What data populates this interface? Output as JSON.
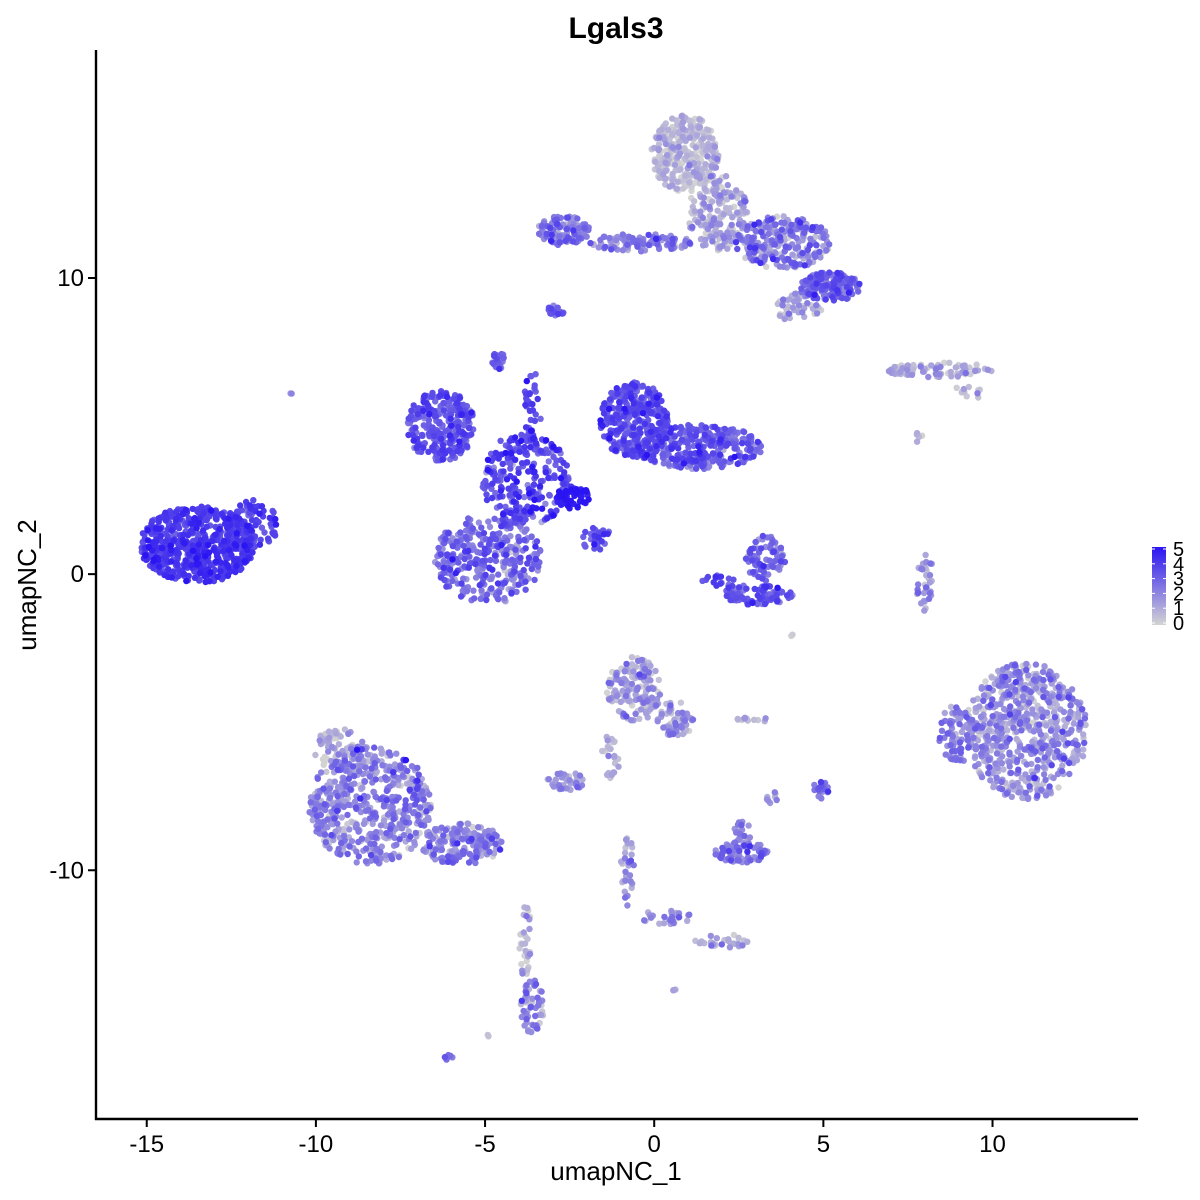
{
  "chart_data": {
    "type": "scatter",
    "title": "Lgals3",
    "xlabel": "umapNC_1",
    "ylabel": "umapNC_2",
    "xlim": [
      -16.5,
      14.3
    ],
    "ylim": [
      -18.4,
      17.7
    ],
    "x_ticks": [
      -15,
      -10,
      -5,
      0,
      5,
      10
    ],
    "x_tick_labels": [
      "-15",
      "-10",
      "-5",
      "0",
      "5",
      "10"
    ],
    "y_ticks": [
      -10,
      0,
      10
    ],
    "y_tick_labels": [
      "-10",
      "0",
      "10"
    ],
    "grid": false,
    "color_scale": {
      "low_color": "#d3d3d3",
      "high_color": "#2a14f2",
      "min": 0,
      "max": 5,
      "legend_position": "right",
      "legend_labels": [
        "0",
        "1",
        "2",
        "3",
        "4",
        "5"
      ]
    },
    "clusters": [
      {
        "cx": -13.5,
        "cy": 1.0,
        "rx": 1.7,
        "ry": 1.3,
        "n": 600,
        "level": 3.9,
        "spread": 0.5
      },
      {
        "cx": -11.8,
        "cy": 1.7,
        "rx": 0.7,
        "ry": 0.8,
        "n": 80,
        "level": 3.6,
        "spread": 0.5
      },
      {
        "cx": -10.7,
        "cy": 6.1,
        "rx": 0.08,
        "ry": 0.08,
        "n": 2,
        "level": 2.0,
        "spread": 0.3
      },
      {
        "cx": -6.3,
        "cy": 5.0,
        "rx": 1.0,
        "ry": 1.2,
        "n": 260,
        "level": 3.3,
        "spread": 0.7
      },
      {
        "cx": -4.9,
        "cy": 0.5,
        "rx": 1.6,
        "ry": 1.5,
        "n": 330,
        "level": 2.6,
        "spread": 0.9
      },
      {
        "cx": -3.8,
        "cy": 3.2,
        "rx": 1.3,
        "ry": 1.6,
        "n": 260,
        "level": 3.5,
        "spread": 0.8
      },
      {
        "cx": -2.4,
        "cy": 2.6,
        "rx": 0.5,
        "ry": 0.4,
        "n": 60,
        "level": 4.8,
        "spread": 0.3
      },
      {
        "cx": -0.6,
        "cy": 5.2,
        "rx": 1.0,
        "ry": 1.3,
        "n": 300,
        "level": 3.4,
        "spread": 0.6
      },
      {
        "cx": 1.3,
        "cy": 4.3,
        "rx": 1.9,
        "ry": 0.75,
        "n": 320,
        "level": 3.1,
        "spread": 0.7
      },
      {
        "cx": -4.6,
        "cy": 7.2,
        "rx": 0.2,
        "ry": 0.3,
        "n": 25,
        "level": 2.8,
        "spread": 0.6
      },
      {
        "cx": -3.6,
        "cy": 5.5,
        "rx": 0.25,
        "ry": 1.4,
        "n": 40,
        "level": 3.6,
        "spread": 0.5
      },
      {
        "cx": -1.7,
        "cy": 1.2,
        "rx": 0.5,
        "ry": 0.4,
        "n": 25,
        "level": 3.3,
        "spread": 0.6
      },
      {
        "cx": 0.9,
        "cy": 14.2,
        "rx": 1.0,
        "ry": 1.3,
        "n": 320,
        "level": 0.5,
        "spread": 0.6
      },
      {
        "cx": 1.9,
        "cy": 12.2,
        "rx": 0.9,
        "ry": 1.3,
        "n": 180,
        "level": 0.9,
        "spread": 0.8
      },
      {
        "cx": 3.8,
        "cy": 11.2,
        "rx": 1.4,
        "ry": 0.9,
        "n": 260,
        "level": 1.9,
        "spread": 1.0
      },
      {
        "cx": 5.2,
        "cy": 9.7,
        "rx": 0.9,
        "ry": 0.5,
        "n": 160,
        "level": 2.8,
        "spread": 0.7
      },
      {
        "cx": 4.3,
        "cy": 9.0,
        "rx": 0.7,
        "ry": 0.5,
        "n": 50,
        "level": 1.2,
        "spread": 0.8
      },
      {
        "cx": -2.7,
        "cy": 11.6,
        "rx": 0.8,
        "ry": 0.5,
        "n": 110,
        "level": 2.3,
        "spread": 0.7
      },
      {
        "cx": -0.4,
        "cy": 11.2,
        "rx": 1.5,
        "ry": 0.3,
        "n": 110,
        "level": 2.2,
        "spread": 0.8
      },
      {
        "cx": -2.9,
        "cy": 8.9,
        "rx": 0.25,
        "ry": 0.2,
        "n": 15,
        "level": 2.9,
        "spread": 0.5
      },
      {
        "cx": 8.4,
        "cy": 6.9,
        "rx": 1.6,
        "ry": 0.25,
        "n": 80,
        "level": 0.8,
        "spread": 0.7
      },
      {
        "cx": 9.2,
        "cy": 6.1,
        "rx": 0.5,
        "ry": 0.25,
        "n": 10,
        "level": 0.8,
        "spread": 0.6
      },
      {
        "cx": 7.8,
        "cy": 4.6,
        "rx": 0.15,
        "ry": 0.2,
        "n": 5,
        "level": 0.6,
        "spread": 0.5
      },
      {
        "cx": 3.3,
        "cy": 0.5,
        "rx": 0.6,
        "ry": 0.8,
        "n": 80,
        "level": 2.5,
        "spread": 0.8
      },
      {
        "cx": 3.1,
        "cy": -0.7,
        "rx": 1.0,
        "ry": 0.35,
        "n": 90,
        "level": 3.0,
        "spread": 0.6
      },
      {
        "cx": 1.9,
        "cy": -0.3,
        "rx": 0.5,
        "ry": 0.3,
        "n": 20,
        "level": 3.2,
        "spread": 0.5
      },
      {
        "cx": 8.0,
        "cy": -0.2,
        "rx": 0.25,
        "ry": 1.1,
        "n": 35,
        "level": 1.5,
        "spread": 0.8
      },
      {
        "cx": 11.0,
        "cy": -5.3,
        "rx": 1.8,
        "ry": 2.3,
        "n": 650,
        "level": 1.5,
        "spread": 0.9
      },
      {
        "cx": 9.0,
        "cy": -5.4,
        "rx": 0.6,
        "ry": 1.0,
        "n": 80,
        "level": 2.1,
        "spread": 0.8
      },
      {
        "cx": -0.6,
        "cy": -3.9,
        "rx": 0.8,
        "ry": 1.1,
        "n": 170,
        "level": 1.2,
        "spread": 0.9
      },
      {
        "cx": 0.6,
        "cy": -4.9,
        "rx": 0.6,
        "ry": 0.6,
        "n": 60,
        "level": 1.4,
        "spread": 0.8
      },
      {
        "cx": -1.3,
        "cy": -6.1,
        "rx": 0.3,
        "ry": 0.8,
        "n": 25,
        "level": 1.0,
        "spread": 0.7
      },
      {
        "cx": -2.6,
        "cy": -7.0,
        "rx": 0.6,
        "ry": 0.3,
        "n": 45,
        "level": 1.4,
        "spread": 0.8
      },
      {
        "cx": -8.4,
        "cy": -7.8,
        "rx": 1.8,
        "ry": 2.0,
        "n": 520,
        "level": 1.9,
        "spread": 0.9
      },
      {
        "cx": -5.7,
        "cy": -9.1,
        "rx": 1.2,
        "ry": 0.7,
        "n": 180,
        "level": 1.9,
        "spread": 0.9
      },
      {
        "cx": -9.3,
        "cy": -6.0,
        "rx": 0.8,
        "ry": 0.8,
        "n": 80,
        "level": 0.8,
        "spread": 0.7
      },
      {
        "cx": -3.8,
        "cy": -12.4,
        "rx": 0.2,
        "ry": 1.3,
        "n": 30,
        "level": 0.8,
        "spread": 0.7
      },
      {
        "cx": -3.6,
        "cy": -14.6,
        "rx": 0.35,
        "ry": 0.9,
        "n": 55,
        "level": 1.8,
        "spread": 0.9
      },
      {
        "cx": -6.1,
        "cy": -16.3,
        "rx": 0.15,
        "ry": 0.1,
        "n": 6,
        "level": 2.5,
        "spread": 0.4
      },
      {
        "cx": 2.6,
        "cy": -9.4,
        "rx": 0.8,
        "ry": 0.35,
        "n": 90,
        "level": 2.1,
        "spread": 0.8
      },
      {
        "cx": 2.6,
        "cy": -8.7,
        "rx": 0.3,
        "ry": 0.4,
        "n": 20,
        "level": 1.9,
        "spread": 0.7
      },
      {
        "cx": 3.5,
        "cy": -7.5,
        "rx": 0.2,
        "ry": 0.25,
        "n": 8,
        "level": 1.2,
        "spread": 0.6
      },
      {
        "cx": 4.9,
        "cy": -7.3,
        "rx": 0.3,
        "ry": 0.3,
        "n": 20,
        "level": 2.8,
        "spread": 0.6
      },
      {
        "cx": 2.9,
        "cy": -4.9,
        "rx": 0.5,
        "ry": 0.1,
        "n": 12,
        "level": 0.9,
        "spread": 0.6
      },
      {
        "cx": -0.8,
        "cy": -10.0,
        "rx": 0.2,
        "ry": 1.2,
        "n": 30,
        "level": 1.3,
        "spread": 0.8
      },
      {
        "cx": 0.3,
        "cy": -11.6,
        "rx": 0.8,
        "ry": 0.25,
        "n": 30,
        "level": 1.6,
        "spread": 0.8
      },
      {
        "cx": 2.1,
        "cy": -12.4,
        "rx": 0.9,
        "ry": 0.25,
        "n": 30,
        "level": 1.4,
        "spread": 0.8
      },
      {
        "cx": 0.6,
        "cy": -14.0,
        "rx": 0.08,
        "ry": 0.08,
        "n": 3,
        "level": 1.0,
        "spread": 0.3
      },
      {
        "cx": -4.9,
        "cy": -15.6,
        "rx": 0.08,
        "ry": 0.08,
        "n": 2,
        "level": 0.3,
        "spread": 0.3
      },
      {
        "cx": 4.1,
        "cy": -2.1,
        "rx": 0.06,
        "ry": 0.06,
        "n": 2,
        "level": 0.3,
        "spread": 0.3
      }
    ]
  }
}
